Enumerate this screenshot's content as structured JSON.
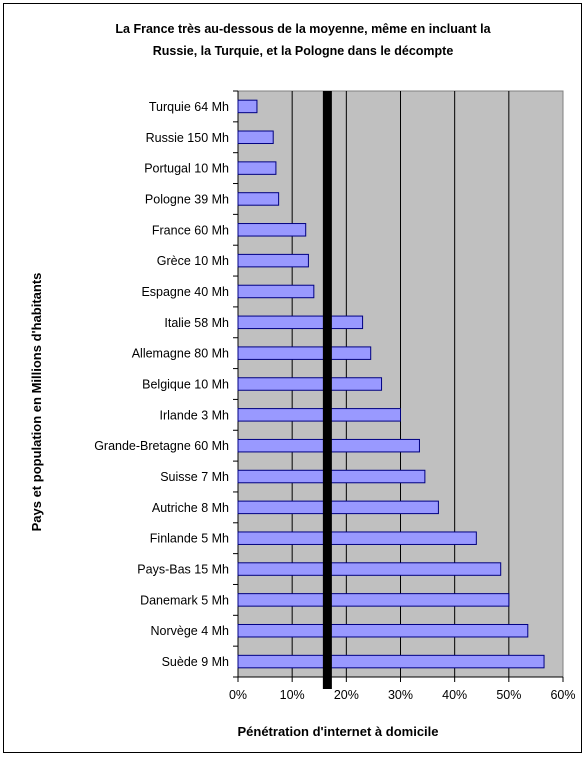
{
  "chart_data": {
    "type": "bar",
    "orientation": "horizontal",
    "title_lines": [
      "La France très au-dessous de la moyenne, même en incluant la",
      "Russie, la Turquie, et la Pologne dans le décompte"
    ],
    "xlabel": "Pénétration d'internet à domicile",
    "ylabel": "Pays et population en Millions d'habitants",
    "categories": [
      "Turquie 64 Mh",
      "Russie 150 Mh",
      "Portugal 10 Mh",
      "Pologne 39 Mh",
      "France 60 Mh",
      "Grèce 10 Mh",
      "Espagne 40 Mh",
      "Italie 58 Mh",
      "Allemagne 80 Mh",
      "Belgique 10 Mh",
      "Irlande 3 Mh",
      "Grande-Bretagne 60 Mh",
      "Suisse 7 Mh",
      "Autriche 8 Mh",
      "Finlande 5 Mh",
      "Pays-Bas 15 Mh",
      "Danemark 5 Mh",
      "Norvège 4 Mh",
      "Suède 9 Mh"
    ],
    "values": [
      3.5,
      6.5,
      7,
      7.5,
      12.5,
      13,
      14,
      23,
      24.5,
      26.5,
      30,
      33.5,
      34.5,
      37,
      44,
      48.5,
      50,
      53.5,
      56.5
    ],
    "xlim": [
      0,
      60
    ],
    "xticks": [
      "0%",
      "10%",
      "20%",
      "30%",
      "40%",
      "50%",
      "60%"
    ],
    "reference_line": {
      "value": 16.5,
      "description": "moyenne"
    },
    "grid": true,
    "colors": {
      "plot_background": "#c0c0c0",
      "bar_fill": "#9999ff",
      "bar_stroke": "#000080",
      "reference_line": "#000000"
    }
  }
}
